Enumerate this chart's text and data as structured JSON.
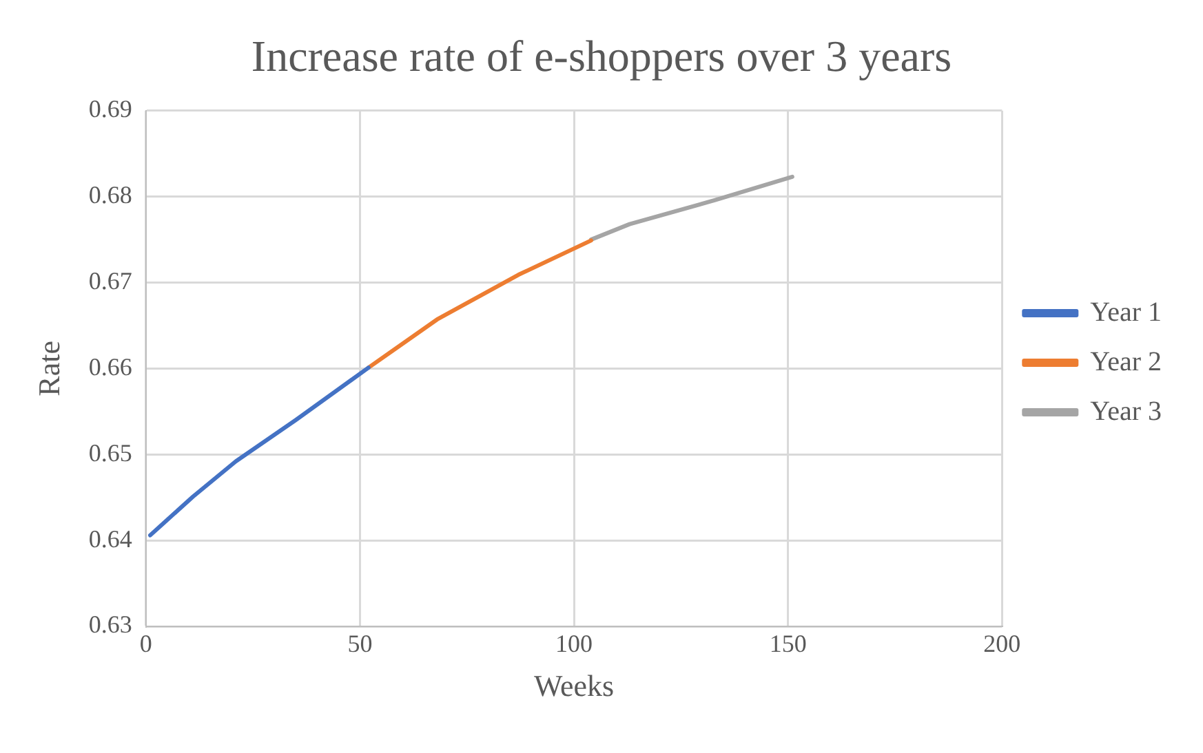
{
  "chart_data": {
    "type": "line",
    "title": "Increase rate of e-shoppers over 3 years",
    "xlabel": "Weeks",
    "ylabel": "Rate",
    "series": [
      {
        "name": "Year 1",
        "color": "#4472c4",
        "x": [
          1,
          11,
          21,
          35,
          52
        ],
        "values": [
          0.6406,
          0.6451,
          0.6492,
          0.654,
          0.6601
        ]
      },
      {
        "name": "Year 2",
        "color": "#ed7d31",
        "x": [
          52,
          68,
          87,
          104
        ],
        "values": [
          0.6601,
          0.6657,
          0.6709,
          0.6749
        ]
      },
      {
        "name": "Year 3",
        "color": "#a5a5a5",
        "x": [
          104,
          113,
          133,
          151
        ],
        "values": [
          0.675,
          0.6768,
          0.6796,
          0.6823
        ]
      }
    ],
    "xlim": [
      0,
      200
    ],
    "xticks": [
      0,
      50,
      100,
      150,
      200
    ],
    "ylim": [
      0.63,
      0.69
    ],
    "yticks": [
      0.63,
      0.64,
      0.65,
      0.66,
      0.67,
      0.68,
      0.69
    ],
    "grid": true,
    "legend": "right",
    "marker": "none",
    "line_style": "solid"
  }
}
